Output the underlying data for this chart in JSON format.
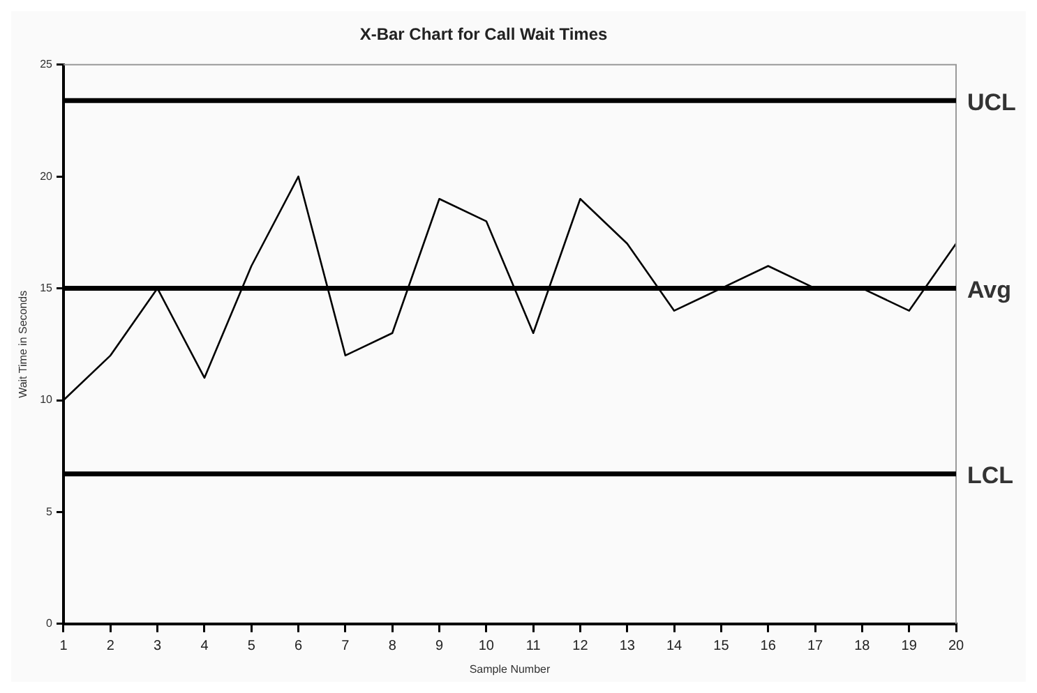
{
  "chart_data": {
    "type": "line",
    "title": "X-Bar Chart for Call Wait Times",
    "xlabel": "Sample Number",
    "ylabel": "Wait Time in Seconds",
    "x": [
      1,
      2,
      3,
      4,
      5,
      6,
      7,
      8,
      9,
      10,
      11,
      12,
      13,
      14,
      15,
      16,
      17,
      18,
      19,
      20
    ],
    "xlim": [
      1,
      20
    ],
    "xticks": [
      1,
      2,
      3,
      4,
      5,
      6,
      7,
      8,
      9,
      10,
      11,
      12,
      13,
      14,
      15,
      16,
      17,
      18,
      19,
      20
    ],
    "series": [
      {
        "color": "#000000",
        "values": [
          10,
          12,
          15,
          11,
          16,
          20,
          12,
          13,
          19,
          18,
          13,
          19,
          17,
          14,
          15,
          16,
          15,
          15,
          14,
          17
        ]
      }
    ],
    "ylim": [
      0,
      25
    ],
    "yticks": [
      0,
      5,
      10,
      15,
      20,
      25
    ],
    "grid": false,
    "legend": false,
    "marker": "none",
    "line_style": "solid",
    "ref_lines": [
      {
        "axis": "y",
        "value": 23.4,
        "label": "UCL",
        "color": "#000000"
      },
      {
        "axis": "y",
        "value": 15,
        "label": "Avg",
        "color": "#000000"
      },
      {
        "axis": "y",
        "value": 6.7,
        "label": "LCL",
        "color": "#000000"
      }
    ]
  }
}
